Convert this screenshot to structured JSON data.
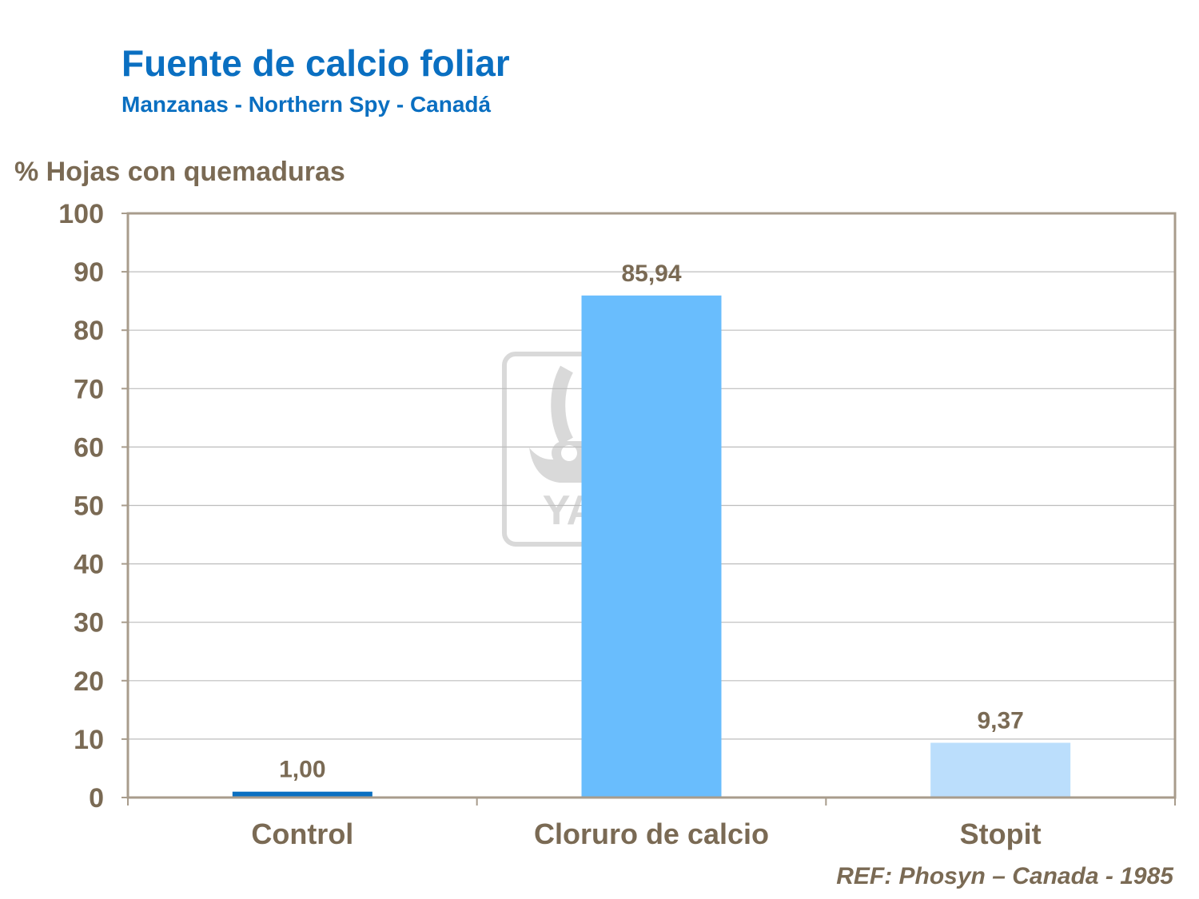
{
  "colors": {
    "title": "#0a6fc1",
    "text": "#7a6a54",
    "axis": "#a89c8c",
    "grid": "#bdbdbd",
    "watermark": "#d9d9d9"
  },
  "watermark": {
    "icon": "yara-viking-ship-logo",
    "text": "YARA"
  },
  "reference": "REF: Phosyn – Canada - 1985",
  "chart_data": {
    "type": "bar",
    "title": "Fuente de calcio foliar",
    "subtitle": "Manzanas - Northern Spy - Canadá",
    "ylabel": "% Hojas con quemaduras",
    "xlabel": "",
    "ylim": [
      0,
      100
    ],
    "yticks": [
      0,
      10,
      20,
      30,
      40,
      50,
      60,
      70,
      80,
      90,
      100
    ],
    "grid": true,
    "categories": [
      "Control",
      "Cloruro de calcio",
      "Stopit"
    ],
    "values": [
      1.0,
      85.94,
      9.37
    ],
    "data_labels": [
      "1,00",
      "85,94",
      "9,37"
    ],
    "bar_colors": [
      "#0a6fc1",
      "#69bdfd",
      "#bbdefc"
    ]
  }
}
